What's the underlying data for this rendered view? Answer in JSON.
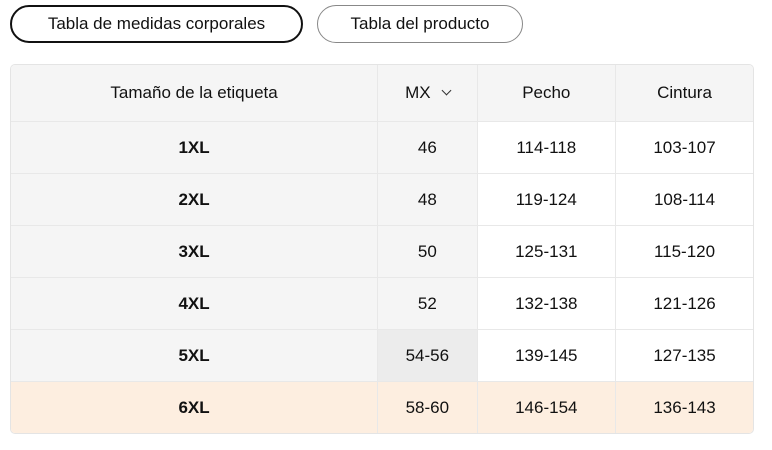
{
  "tabs": [
    {
      "label": "Tabla de medidas corporales",
      "active": true
    },
    {
      "label": "Tabla del producto",
      "active": false
    }
  ],
  "table": {
    "headers": [
      "Tamaño de la etiqueta",
      "MX",
      "Pecho",
      "Cintura"
    ],
    "unit_dropdown_icon": "chevron-down-icon",
    "rows": [
      [
        "1XL",
        "46",
        "114-118",
        "103-107"
      ],
      [
        "2XL",
        "48",
        "119-124",
        "108-114"
      ],
      [
        "3XL",
        "50",
        "125-131",
        "115-120"
      ],
      [
        "4XL",
        "52",
        "132-138",
        "121-126"
      ],
      [
        "5XL",
        "54-56",
        "139-145",
        "127-135"
      ],
      [
        "6XL",
        "58-60",
        "146-154",
        "136-143"
      ]
    ],
    "highlighted_row": "6XL",
    "highlight_color": "#fdeee0"
  }
}
